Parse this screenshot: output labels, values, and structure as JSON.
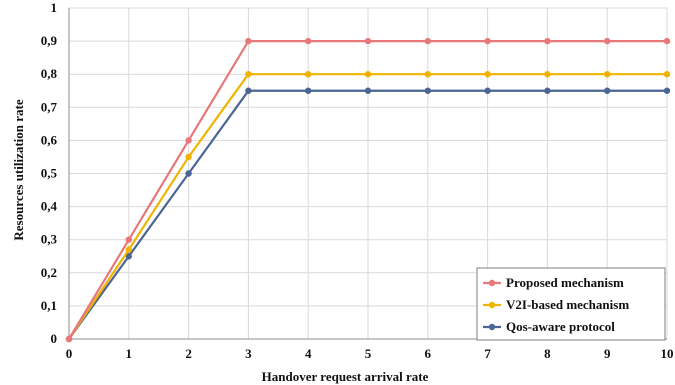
{
  "chart_data": {
    "type": "line",
    "title": "",
    "xlabel": "Handover request arrival rate",
    "ylabel": "Resources utilization rate",
    "x": [
      0,
      1,
      2,
      3,
      4,
      5,
      6,
      7,
      8,
      9,
      10
    ],
    "xlim": [
      0,
      10
    ],
    "ylim": [
      0,
      1
    ],
    "xticks": [
      "0",
      "1",
      "2",
      "3",
      "4",
      "5",
      "6",
      "7",
      "8",
      "9",
      "10"
    ],
    "yticks": [
      "0",
      "0,1",
      "0,2",
      "0,3",
      "0,4",
      "0,5",
      "0,6",
      "0,7",
      "0,8",
      "0,9",
      "1"
    ],
    "grid": true,
    "legend_position": "bottom-right",
    "series": [
      {
        "name": "Proposed mechanism",
        "color": "#e8777a",
        "values": [
          0,
          0.3,
          0.6,
          0.9,
          0.9,
          0.9,
          0.9,
          0.9,
          0.9,
          0.9,
          0.9
        ]
      },
      {
        "name": "V2I-based mechanism",
        "color": "#f0b400",
        "values": [
          0,
          0.27,
          0.55,
          0.8,
          0.8,
          0.8,
          0.8,
          0.8,
          0.8,
          0.8,
          0.8
        ]
      },
      {
        "name": "Qos-aware protocol",
        "color": "#4a6694",
        "values": [
          0,
          0.25,
          0.5,
          0.75,
          0.75,
          0.75,
          0.75,
          0.75,
          0.75,
          0.75,
          0.75
        ]
      }
    ]
  }
}
